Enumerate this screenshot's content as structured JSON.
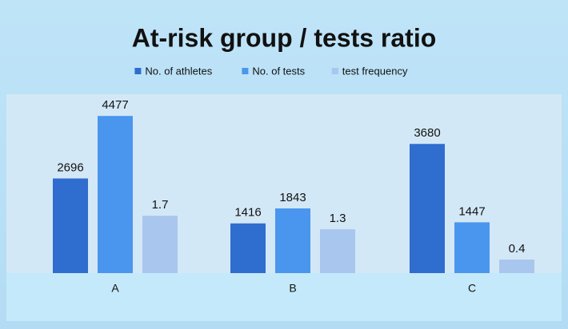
{
  "chart_data": {
    "type": "bar",
    "title": "At-risk group / tests ratio",
    "categories": [
      "A",
      "B",
      "C"
    ],
    "series": [
      {
        "name": "No. of athletes",
        "color": "#2f6dcf",
        "values": [
          2696,
          1416,
          3680
        ]
      },
      {
        "name": "No. of tests",
        "color": "#4a96ee",
        "values": [
          4477,
          1843,
          1447
        ]
      },
      {
        "name": "test frequency",
        "color": "#a8c6ee",
        "values": [
          1.7,
          1.3,
          0.4
        ],
        "axis": "y2"
      }
    ],
    "ylim": [
      0,
      4800
    ],
    "y2lim": [
      0,
      5
    ],
    "legend": "top"
  }
}
